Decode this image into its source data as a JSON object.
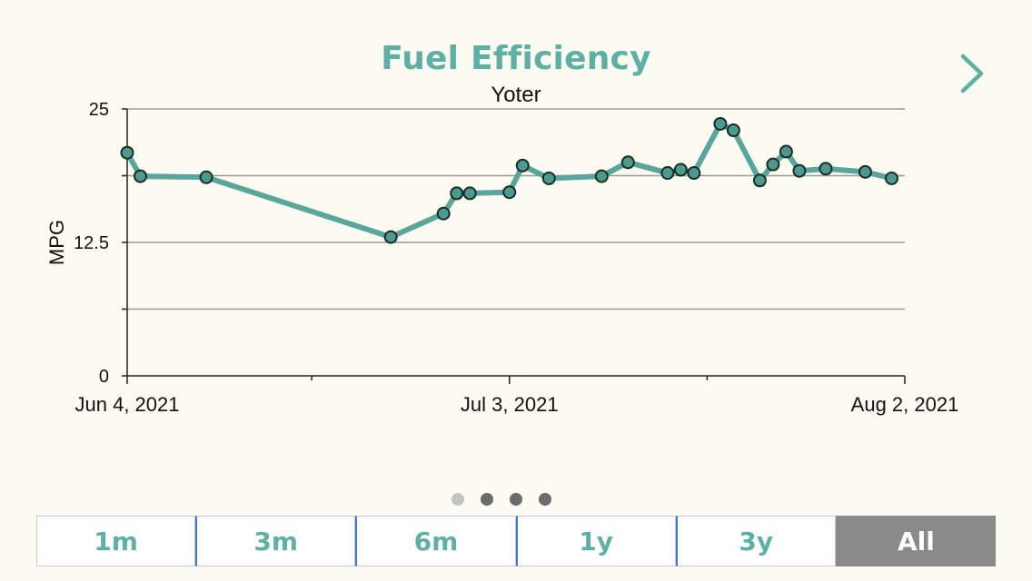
{
  "header": {
    "title": "Fuel Efficiency",
    "next_icon": "chevron-right-icon"
  },
  "colors": {
    "accent": "#5fb0a4",
    "line": "#5aa69b",
    "selected_bg": "#8a8a8a",
    "background": "#fcfbf2"
  },
  "pager": {
    "count": 4,
    "active_index": 0
  },
  "range_buttons": [
    {
      "label": "1m",
      "selected": false
    },
    {
      "label": "3m",
      "selected": false
    },
    {
      "label": "6m",
      "selected": false
    },
    {
      "label": "1y",
      "selected": false
    },
    {
      "label": "3y",
      "selected": false
    },
    {
      "label": "All",
      "selected": true
    }
  ],
  "chart_data": {
    "type": "line",
    "title": "Fuel Efficiency",
    "subtitle": "Yoter",
    "xlabel": "",
    "ylabel": "MPG",
    "ylim": [
      0,
      25
    ],
    "xlim": [
      "2021-06-04",
      "2021-08-02"
    ],
    "y_ticks": [
      0,
      12.5,
      25
    ],
    "y_tick_labels": [
      "0",
      "12.5",
      "25"
    ],
    "x_tick_labels": [
      {
        "date": "2021-06-04",
        "label": "Jun 4, 2021"
      },
      {
        "date": "2021-07-03",
        "label": "Jul 3, 2021"
      },
      {
        "date": "2021-08-02",
        "label": "Aug 2, 2021"
      }
    ],
    "grid": true,
    "series": [
      {
        "points": [
          {
            "x": "2021-06-04",
            "y": 20.9
          },
          {
            "x": "2021-06-05",
            "y": 18.7
          },
          {
            "x": "2021-06-10",
            "y": 18.6
          },
          {
            "x": "2021-06-24",
            "y": 13.0
          },
          {
            "x": "2021-06-28",
            "y": 15.2
          },
          {
            "x": "2021-06-29",
            "y": 17.1
          },
          {
            "x": "2021-06-30",
            "y": 17.1
          },
          {
            "x": "2021-07-03",
            "y": 17.2
          },
          {
            "x": "2021-07-04",
            "y": 19.7
          },
          {
            "x": "2021-07-06",
            "y": 18.5
          },
          {
            "x": "2021-07-10",
            "y": 18.7
          },
          {
            "x": "2021-07-12",
            "y": 20.0
          },
          {
            "x": "2021-07-15",
            "y": 19.0
          },
          {
            "x": "2021-07-16",
            "y": 19.3
          },
          {
            "x": "2021-07-17",
            "y": 19.0
          },
          {
            "x": "2021-07-19",
            "y": 23.6
          },
          {
            "x": "2021-07-20",
            "y": 23.0
          },
          {
            "x": "2021-07-22",
            "y": 18.3
          },
          {
            "x": "2021-07-23",
            "y": 19.8
          },
          {
            "x": "2021-07-24",
            "y": 21.0
          },
          {
            "x": "2021-07-25",
            "y": 19.2
          },
          {
            "x": "2021-07-27",
            "y": 19.4
          },
          {
            "x": "2021-07-30",
            "y": 19.1
          },
          {
            "x": "2021-08-01",
            "y": 18.5
          }
        ]
      }
    ]
  }
}
